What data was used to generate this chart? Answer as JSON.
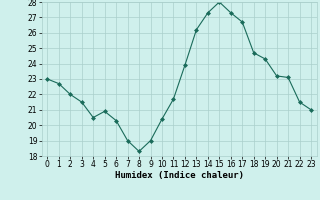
{
  "x": [
    0,
    1,
    2,
    3,
    4,
    5,
    6,
    7,
    8,
    9,
    10,
    11,
    12,
    13,
    14,
    15,
    16,
    17,
    18,
    19,
    20,
    21,
    22,
    23
  ],
  "y": [
    23.0,
    22.7,
    22.0,
    21.5,
    20.5,
    20.9,
    20.3,
    19.0,
    18.3,
    19.0,
    20.4,
    21.7,
    23.9,
    26.2,
    27.3,
    28.0,
    27.3,
    26.7,
    24.7,
    24.3,
    23.2,
    23.1,
    21.5,
    21.0
  ],
  "line_color": "#1a6b5a",
  "marker": "D",
  "marker_size": 2.0,
  "xlabel": "Humidex (Indice chaleur)",
  "ylim": [
    18,
    28
  ],
  "xlim": [
    -0.5,
    23.5
  ],
  "yticks": [
    18,
    19,
    20,
    21,
    22,
    23,
    24,
    25,
    26,
    27,
    28
  ],
  "xticks": [
    0,
    1,
    2,
    3,
    4,
    5,
    6,
    7,
    8,
    9,
    10,
    11,
    12,
    13,
    14,
    15,
    16,
    17,
    18,
    19,
    20,
    21,
    22,
    23
  ],
  "bg_color": "#cff0ec",
  "grid_color": "#aacfcb",
  "tick_label_fontsize": 5.5,
  "xlabel_fontsize": 6.5,
  "linewidth": 0.8
}
